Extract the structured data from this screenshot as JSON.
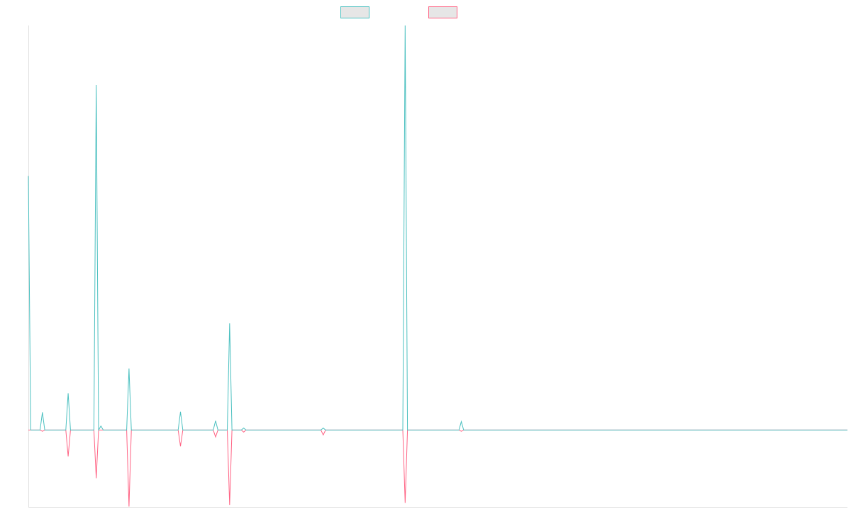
{
  "chart_data": {
    "type": "line",
    "x": [
      0,
      1,
      5,
      6,
      7,
      16,
      17,
      18,
      28,
      29,
      30,
      31,
      32,
      42,
      43,
      44,
      64,
      65,
      66,
      79,
      80,
      81,
      85,
      86,
      87,
      91,
      92,
      93,
      125,
      126,
      127,
      160,
      161,
      162,
      184,
      185,
      186,
      350
    ],
    "series": [
      {
        "color": "#ff6384",
        "values": [
          0,
          0,
          0,
          -0.3,
          0,
          0,
          -6.5,
          0,
          0,
          -11.9,
          0,
          0,
          0,
          0,
          -18.9,
          0,
          0,
          -4,
          0,
          0,
          -1.7,
          0,
          0,
          -18.5,
          0,
          0,
          -0.5,
          0,
          0,
          -1.2,
          0,
          0,
          -18,
          0,
          0,
          -0.3,
          0,
          0
        ]
      },
      {
        "color": "#4bc0c0",
        "values": [
          62.8,
          0,
          0,
          4.4,
          0,
          0,
          9.1,
          0,
          0,
          85.3,
          0,
          1,
          0,
          0,
          15.2,
          0,
          0,
          4.5,
          0,
          0,
          2.3,
          0,
          0,
          26.4,
          0,
          0,
          0.5,
          0,
          0,
          0.5,
          0,
          0,
          100,
          0,
          0,
          2.1,
          0,
          0
        ]
      }
    ],
    "xlim": [
      0,
      350
    ],
    "ylim": [
      -19,
      100
    ],
    "grid": false
  }
}
